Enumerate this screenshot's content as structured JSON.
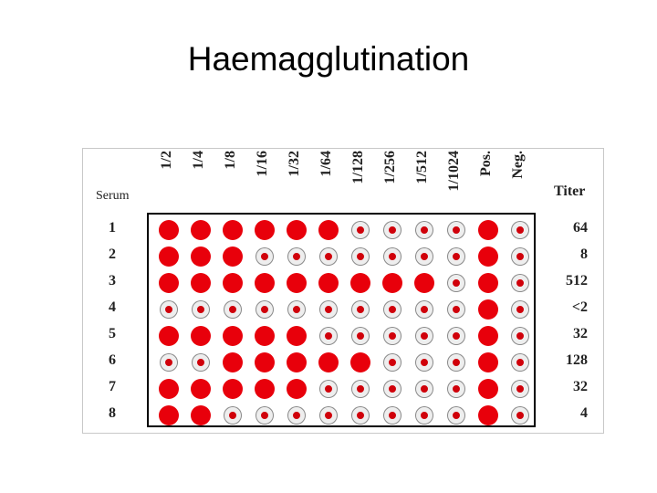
{
  "title": "Haemagglutination",
  "table": {
    "serum_label": "Serum",
    "titer_label": "Titer",
    "columns": [
      "1/2",
      "1/4",
      "1/8",
      "1/16",
      "1/32",
      "1/64",
      "1/128",
      "1/256",
      "1/512",
      "1/1024",
      "Pos.",
      "Neg."
    ],
    "rows": [
      {
        "serum": "1",
        "titer": "64"
      },
      {
        "serum": "2",
        "titer": "8"
      },
      {
        "serum": "3",
        "titer": "512"
      },
      {
        "serum": "4",
        "titer": "<2"
      },
      {
        "serum": "5",
        "titer": "32"
      },
      {
        "serum": "6",
        "titer": "128"
      },
      {
        "serum": "7",
        "titer": "32"
      },
      {
        "serum": "8",
        "titer": "4"
      }
    ]
  }
}
